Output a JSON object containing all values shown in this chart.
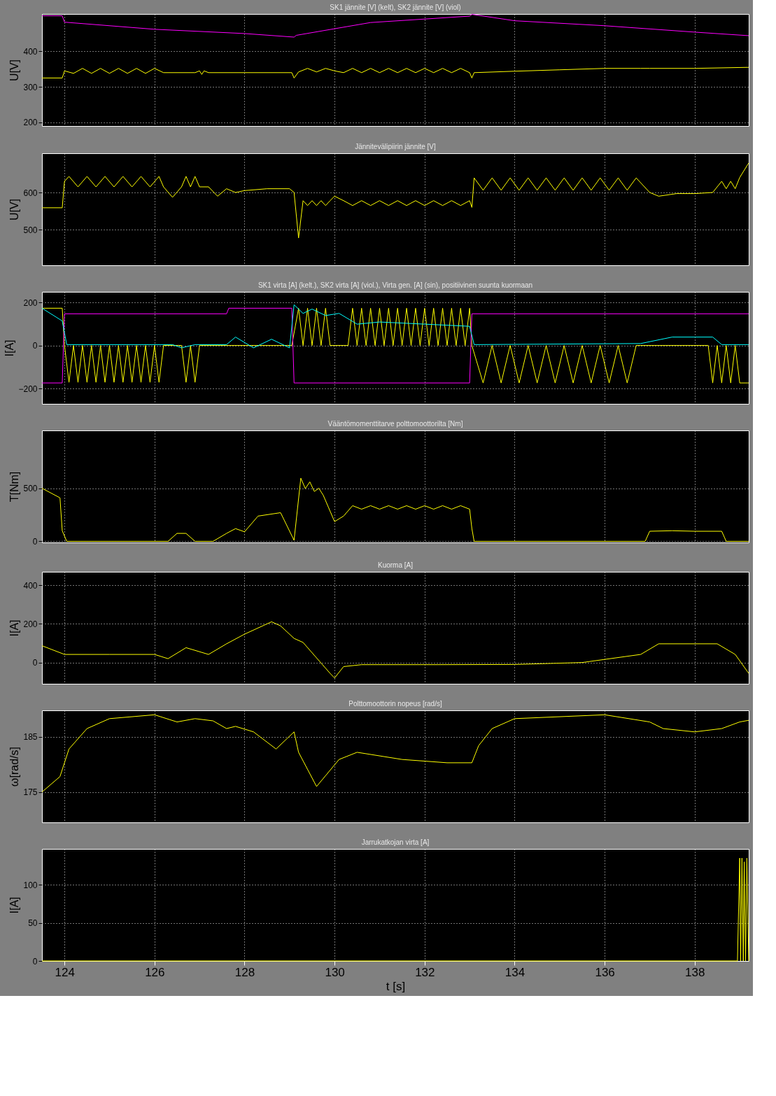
{
  "chart_data": [
    {
      "type": "line",
      "title": "SK1 jännite [V] (kelt), SK2 jännite [V] (viol)",
      "ylabel": "U[V]",
      "xlim": [
        123.5,
        139.2
      ],
      "xticks": [
        124,
        126,
        128,
        130,
        132,
        134,
        136,
        138
      ],
      "ylim": [
        190,
        505
      ],
      "yticks": [
        200,
        300,
        400
      ],
      "grid": true,
      "legend": false,
      "tick_labels": "y",
      "series": [
        {
          "color": "#ffff00",
          "x": [
            123.5,
            123.95,
            124.0,
            124.2,
            124.4,
            124.6,
            124.8,
            125.0,
            125.2,
            125.4,
            125.6,
            125.8,
            126.0,
            126.2,
            126.9,
            127.0,
            127.05,
            127.1,
            127.2,
            129.05,
            129.1,
            129.2,
            129.4,
            129.6,
            129.8,
            130.0,
            130.2,
            130.4,
            130.6,
            130.8,
            131.0,
            131.2,
            131.4,
            131.6,
            131.8,
            132.0,
            132.2,
            132.4,
            132.6,
            132.8,
            133.0,
            133.05,
            133.1,
            134.0,
            135.0,
            136.0,
            136.8,
            137.0,
            138.0,
            139.2
          ],
          "values": [
            325,
            325,
            345,
            338,
            352,
            338,
            352,
            338,
            352,
            338,
            352,
            338,
            352,
            340,
            340,
            345,
            335,
            345,
            340,
            340,
            325,
            342,
            352,
            342,
            352,
            345,
            340,
            352,
            340,
            352,
            340,
            352,
            340,
            352,
            340,
            352,
            340,
            352,
            340,
            352,
            340,
            325,
            340,
            344,
            348,
            352,
            352,
            352,
            352,
            355
          ]
        },
        {
          "color": "#ff00ff",
          "x": [
            123.5,
            123.95,
            124.0,
            126.0,
            128.0,
            129.1,
            129.15,
            130.8,
            133.0,
            133.05,
            134.0,
            136.0,
            138.0,
            139.2
          ],
          "values": [
            500,
            500,
            482,
            462,
            450,
            440,
            445,
            481,
            499,
            504,
            486,
            472,
            454,
            444
          ]
        }
      ]
    },
    {
      "type": "line",
      "title": "Jännitevälipiirin jännite [V]",
      "ylabel": "U[V]",
      "xlim": [
        123.5,
        139.2
      ],
      "xticks": [
        124,
        126,
        128,
        130,
        132,
        134,
        136,
        138
      ],
      "ylim": [
        405,
        705
      ],
      "yticks": [
        500,
        600
      ],
      "grid": true,
      "legend": false,
      "tick_labels": "y",
      "series": [
        {
          "color": "#ffff00",
          "x": [
            123.5,
            123.95,
            124.0,
            124.1,
            124.3,
            124.5,
            124.7,
            124.9,
            125.1,
            125.3,
            125.5,
            125.7,
            125.9,
            126.1,
            126.2,
            126.4,
            126.6,
            126.7,
            126.8,
            126.9,
            127.0,
            127.2,
            127.4,
            127.6,
            127.8,
            128.0,
            128.5,
            129.0,
            129.1,
            129.2,
            129.3,
            129.4,
            129.5,
            129.6,
            129.7,
            129.8,
            129.9,
            130.0,
            130.2,
            130.4,
            130.6,
            130.8,
            131.0,
            131.2,
            131.4,
            131.6,
            131.8,
            132.0,
            132.2,
            132.4,
            132.6,
            132.8,
            133.0,
            133.05,
            133.1,
            133.3,
            133.5,
            133.7,
            133.9,
            134.1,
            134.3,
            134.5,
            134.7,
            134.9,
            135.1,
            135.3,
            135.5,
            135.7,
            135.9,
            136.1,
            136.3,
            136.5,
            136.7,
            137.0,
            137.2,
            137.6,
            138.0,
            138.4,
            138.6,
            138.7,
            138.8,
            138.9,
            139.0,
            139.2
          ],
          "values": [
            559,
            559,
            630,
            643,
            615,
            643,
            615,
            643,
            615,
            643,
            615,
            643,
            615,
            643,
            615,
            587,
            615,
            643,
            615,
            643,
            615,
            615,
            590,
            610,
            600,
            605,
            610,
            610,
            600,
            478,
            578,
            565,
            578,
            565,
            578,
            565,
            578,
            590,
            578,
            565,
            578,
            565,
            578,
            565,
            578,
            565,
            578,
            565,
            578,
            565,
            578,
            565,
            578,
            560,
            639,
            606,
            639,
            606,
            639,
            606,
            639,
            606,
            639,
            606,
            639,
            606,
            639,
            606,
            639,
            606,
            639,
            606,
            639,
            600,
            590,
            597,
            597,
            600,
            630,
            610,
            630,
            610,
            640,
            679
          ]
        }
      ]
    },
    {
      "type": "line",
      "title": "SK1 virta [A] (kelt.), SK2 virta [A] (viol.), Virta gen. [A] (sin), positiivinen suunta kuormaan",
      "ylabel": "I[A]",
      "xlim": [
        123.5,
        139.2
      ],
      "xticks": [
        124,
        126,
        128,
        130,
        132,
        134,
        136,
        138
      ],
      "ylim": [
        -270,
        250
      ],
      "yticks": [
        -200,
        0,
        200
      ],
      "grid": true,
      "legend": false,
      "tick_labels": "y",
      "series": [
        {
          "color": "#ffff00",
          "x": [
            123.5,
            123.95,
            124.0,
            124.1,
            124.2,
            124.3,
            124.4,
            124.5,
            124.6,
            124.7,
            124.8,
            124.9,
            125.0,
            125.1,
            125.2,
            125.3,
            125.4,
            125.5,
            125.6,
            125.7,
            125.8,
            125.9,
            126.0,
            126.1,
            126.2,
            126.6,
            126.7,
            126.8,
            126.9,
            127.0,
            129.05,
            129.2,
            129.3,
            129.4,
            129.5,
            129.6,
            129.7,
            129.8,
            129.9,
            130.0,
            130.3,
            130.4,
            130.5,
            130.6,
            130.7,
            130.8,
            130.9,
            131.0,
            131.1,
            131.2,
            131.3,
            131.4,
            131.5,
            131.6,
            131.7,
            131.8,
            131.9,
            132.0,
            132.1,
            132.2,
            132.3,
            132.4,
            132.5,
            132.6,
            132.7,
            132.8,
            132.9,
            133.0,
            133.05,
            133.3,
            133.5,
            133.7,
            133.9,
            134.1,
            134.3,
            134.5,
            134.7,
            134.9,
            135.1,
            135.3,
            135.5,
            135.7,
            135.9,
            136.1,
            136.3,
            136.5,
            136.7,
            136.8,
            138.3,
            138.4,
            138.5,
            138.6,
            138.7,
            138.8,
            138.9,
            139.0,
            139.2
          ],
          "values": [
            174,
            174,
            1,
            -170,
            1,
            -170,
            1,
            -170,
            1,
            -170,
            1,
            -170,
            1,
            -170,
            1,
            -170,
            1,
            -170,
            1,
            -170,
            1,
            -170,
            1,
            -170,
            1,
            1,
            -170,
            1,
            -170,
            1,
            1,
            174,
            1,
            174,
            1,
            174,
            1,
            174,
            1,
            1,
            1,
            174,
            1,
            174,
            1,
            174,
            1,
            174,
            1,
            174,
            1,
            174,
            1,
            174,
            1,
            174,
            1,
            174,
            1,
            174,
            1,
            174,
            1,
            174,
            1,
            174,
            1,
            174,
            1,
            -173,
            1,
            -173,
            1,
            -173,
            1,
            -173,
            1,
            -173,
            1,
            -173,
            1,
            -173,
            1,
            -173,
            1,
            -173,
            1,
            1,
            1,
            -173,
            1,
            -173,
            1,
            -173,
            1,
            -173,
            -173
          ]
        },
        {
          "color": "#ff00ff",
          "x": [
            123.5,
            123.95,
            124.0,
            127.6,
            127.65,
            129.05,
            129.1,
            133.0,
            133.05,
            139.2
          ],
          "values": [
            -173,
            -173,
            148,
            148,
            174,
            174,
            -173,
            -173,
            148,
            148
          ]
        },
        {
          "color": "#00ffff",
          "x": [
            123.5,
            123.95,
            124.05,
            125.0,
            126.4,
            126.6,
            126.9,
            127.6,
            127.8,
            128.2,
            128.6,
            129.0,
            129.1,
            129.3,
            129.5,
            129.8,
            130.1,
            130.5,
            131.0,
            132.0,
            133.0,
            133.1,
            136.8,
            137.5,
            138.4,
            138.6,
            139.2
          ],
          "values": [
            174,
            115,
            5,
            5,
            5,
            -10,
            5,
            5,
            40,
            -10,
            30,
            -10,
            190,
            150,
            170,
            140,
            150,
            100,
            110,
            100,
            90,
            5,
            10,
            40,
            40,
            5,
            5
          ]
        }
      ]
    },
    {
      "type": "line",
      "title": "Vääntömomenttitarve polttomoottorilta [Nm]",
      "ylabel": "T[Nm]",
      "xlim": [
        123.5,
        139.2
      ],
      "xticks": [
        124,
        126,
        128,
        130,
        132,
        134,
        136,
        138
      ],
      "ylim": [
        -10,
        1045
      ],
      "yticks": [
        0,
        500
      ],
      "grid": true,
      "legend": false,
      "tick_labels": "y",
      "series": [
        {
          "color": "#ffff00",
          "x": [
            123.5,
            123.9,
            123.95,
            124.05,
            126.3,
            126.5,
            126.7,
            126.9,
            127.3,
            127.6,
            127.8,
            128.0,
            128.3,
            128.8,
            129.1,
            129.25,
            129.35,
            129.45,
            129.55,
            129.65,
            129.75,
            130.0,
            130.2,
            130.4,
            130.6,
            130.8,
            131.0,
            131.2,
            131.4,
            131.6,
            131.8,
            132.0,
            132.2,
            132.4,
            132.6,
            132.8,
            133.0,
            133.05,
            133.1,
            136.9,
            137.0,
            137.5,
            138.0,
            138.6,
            138.7,
            139.2
          ],
          "values": [
            500,
            410,
            100,
            0,
            0,
            75,
            75,
            0,
            0,
            75,
            120,
            90,
            238,
            270,
            10,
            595,
            497,
            560,
            470,
            500,
            433,
            186,
            238,
            336,
            303,
            336,
            303,
            336,
            303,
            336,
            303,
            336,
            303,
            336,
            303,
            336,
            303,
            121,
            0,
            0,
            95,
            100,
            95,
            95,
            0,
            0
          ]
        }
      ]
    },
    {
      "type": "line",
      "title": "Kuorma [A]",
      "ylabel": "I[A]",
      "xlim": [
        123.5,
        139.2
      ],
      "xticks": [
        124,
        126,
        128,
        130,
        132,
        134,
        136,
        138
      ],
      "ylim": [
        -110,
        470
      ],
      "yticks": [
        0,
        200,
        400
      ],
      "grid": true,
      "legend": false,
      "tick_labels": "y",
      "series": [
        {
          "color": "#ffff00",
          "x": [
            123.5,
            124.0,
            125.0,
            126.0,
            126.3,
            126.7,
            127.2,
            127.6,
            128.0,
            128.6,
            128.8,
            129.1,
            129.3,
            129.9,
            130.0,
            130.2,
            130.6,
            132.3,
            134.0,
            135.5,
            136.8,
            137.2,
            138.5,
            138.9,
            139.2
          ],
          "values": [
            87,
            42,
            42,
            42,
            20,
            77,
            42,
            97,
            147,
            211,
            190,
            125,
            104,
            -56,
            -80,
            -21,
            -11,
            -11,
            -10,
            0,
            42,
            97,
            97,
            42,
            -56
          ]
        }
      ]
    },
    {
      "type": "line",
      "title": "Polttomoottorin nopeus [rad/s]",
      "ylabel": "ω[rad/s]",
      "xlim": [
        123.5,
        139.2
      ],
      "xticks": [
        124,
        126,
        128,
        130,
        132,
        134,
        136,
        138
      ],
      "ylim": [
        169.5,
        189.8
      ],
      "yticks": [
        175,
        185
      ],
      "grid": true,
      "legend": false,
      "tick_labels": "y",
      "series": [
        {
          "color": "#ffff00",
          "x": [
            123.5,
            123.9,
            124.1,
            124.5,
            125.0,
            126.0,
            126.5,
            126.9,
            127.3,
            127.6,
            127.8,
            128.2,
            128.7,
            129.1,
            129.2,
            129.6,
            130.1,
            130.5,
            131.5,
            132.5,
            133.05,
            133.2,
            133.5,
            134.0,
            136.0,
            137.0,
            137.3,
            138.0,
            138.6,
            139.0,
            139.2
          ],
          "values": [
            175,
            177.8,
            182.8,
            186.5,
            188.3,
            189,
            187.7,
            188.3,
            187.9,
            186.5,
            186.9,
            185.9,
            182.8,
            185.9,
            182.2,
            176,
            180.9,
            182.2,
            180.9,
            180.3,
            180.3,
            183.4,
            186.5,
            188.3,
            189,
            187.7,
            186.5,
            185.9,
            186.5,
            187.7,
            188
          ]
        }
      ]
    },
    {
      "type": "line",
      "title": "Jarrukatkojan virta [A]",
      "xlabel": "t [s]",
      "ylabel": "I[A]",
      "xlim": [
        123.5,
        139.2
      ],
      "xticks": [
        124,
        126,
        128,
        130,
        132,
        134,
        136,
        138
      ],
      "ylim": [
        0,
        147
      ],
      "yticks": [
        0,
        50,
        100
      ],
      "grid": true,
      "legend": false,
      "series": [
        {
          "color": "#ffff00",
          "x": [
            123.5,
            138.95,
            139.0,
            139.02,
            139.05,
            139.08,
            139.1,
            139.13,
            139.16,
            139.2
          ],
          "values": [
            0,
            0,
            135,
            0,
            135,
            0,
            130,
            0,
            135,
            0
          ]
        }
      ]
    }
  ]
}
